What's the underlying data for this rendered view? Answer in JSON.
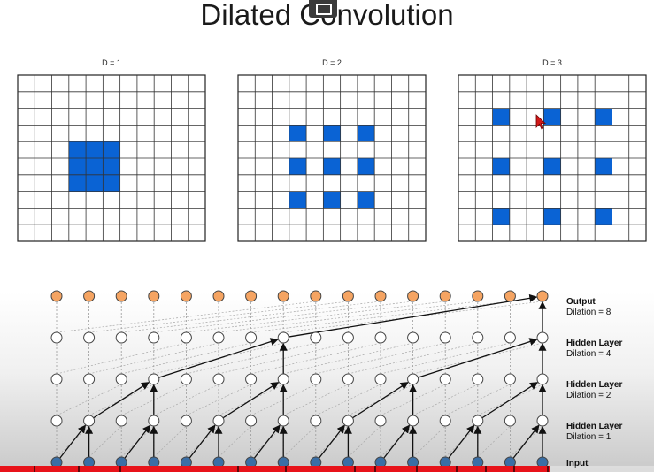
{
  "title": "Dilated Convolution",
  "grids": [
    {
      "label": "D = 1",
      "rows": 10,
      "cols": 11,
      "cells": [
        [
          4,
          3
        ],
        [
          4,
          4
        ],
        [
          4,
          5
        ],
        [
          5,
          3
        ],
        [
          5,
          4
        ],
        [
          5,
          5
        ],
        [
          6,
          3
        ],
        [
          6,
          4
        ],
        [
          6,
          5
        ]
      ]
    },
    {
      "label": "D = 2",
      "rows": 10,
      "cols": 11,
      "cells": [
        [
          3,
          3
        ],
        [
          3,
          5
        ],
        [
          3,
          7
        ],
        [
          5,
          3
        ],
        [
          5,
          5
        ],
        [
          5,
          7
        ],
        [
          7,
          3
        ],
        [
          7,
          5
        ],
        [
          7,
          7
        ]
      ]
    },
    {
      "label": "D = 3",
      "rows": 10,
      "cols": 11,
      "cells": [
        [
          2,
          2
        ],
        [
          2,
          5
        ],
        [
          2,
          8
        ],
        [
          5,
          2
        ],
        [
          5,
          5
        ],
        [
          5,
          8
        ],
        [
          8,
          2
        ],
        [
          8,
          5
        ],
        [
          8,
          8
        ]
      ]
    }
  ],
  "colors": {
    "filled_cell": "#0a63d4",
    "input_node": "#3a6ea5",
    "output_node": "#f5a462",
    "hidden_node": "#ffffff",
    "progress": "#e8131a"
  },
  "network": {
    "nodes_per_layer": 16,
    "layers": [
      {
        "name": "Output",
        "dilation": "Dilation = 8"
      },
      {
        "name": "Hidden Layer",
        "dilation": "Dilation = 4"
      },
      {
        "name": "Hidden Layer",
        "dilation": "Dilation = 2"
      },
      {
        "name": "Hidden Layer",
        "dilation": "Dilation = 1"
      },
      {
        "name": "Input",
        "dilation": ""
      }
    ],
    "dilations": [
      1,
      2,
      4,
      8
    ]
  },
  "video": {
    "progress_fraction": 0.84,
    "chapter_count": 12
  }
}
